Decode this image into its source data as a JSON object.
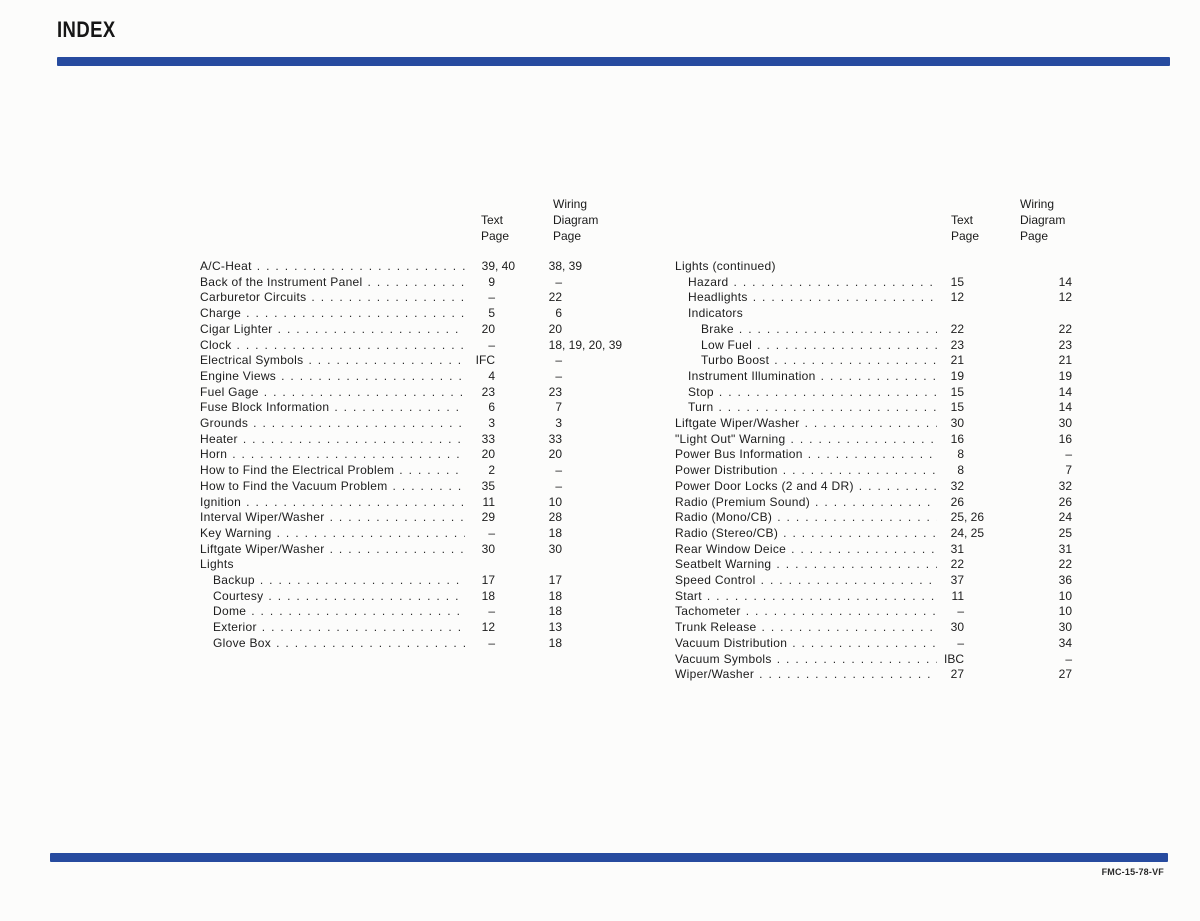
{
  "page": {
    "title": "INDEX",
    "footer_code": "FMC-15-78-VF",
    "accent_color": "#274b9f",
    "background_color": "#fcfcfb",
    "text_color": "#1c1c1c"
  },
  "index": {
    "column_headers": {
      "text": "Text\nPage",
      "wiring": "Wiring\nDiagram\nPage"
    },
    "columns": [
      {
        "entries": [
          {
            "label": "A/C-Heat",
            "indent": 0,
            "text": "39, 40",
            "wiring": "38, 39"
          },
          {
            "label": "Back of the Instrument Panel",
            "indent": 0,
            "text": "9",
            "wiring": "–"
          },
          {
            "label": "Carburetor Circuits",
            "indent": 0,
            "text": "–",
            "wiring": "22"
          },
          {
            "label": "Charge",
            "indent": 0,
            "text": "5",
            "wiring": "6"
          },
          {
            "label": "Cigar Lighter",
            "indent": 0,
            "text": "20",
            "wiring": "20"
          },
          {
            "label": "Clock",
            "indent": 0,
            "text": "–",
            "wiring": "18, 19, 20, 39"
          },
          {
            "label": "Electrical Symbols",
            "indent": 0,
            "text": "IFC",
            "wiring": "–"
          },
          {
            "label": "Engine Views",
            "indent": 0,
            "text": "4",
            "wiring": "–"
          },
          {
            "label": "Fuel Gage",
            "indent": 0,
            "text": "23",
            "wiring": "23"
          },
          {
            "label": "Fuse Block Information",
            "indent": 0,
            "text": "6",
            "wiring": "7"
          },
          {
            "label": "Grounds",
            "indent": 0,
            "text": "3",
            "wiring": "3"
          },
          {
            "label": "Heater",
            "indent": 0,
            "text": "33",
            "wiring": "33"
          },
          {
            "label": "Horn",
            "indent": 0,
            "text": "20",
            "wiring": "20"
          },
          {
            "label": "How to Find the Electrical Problem",
            "indent": 0,
            "text": "2",
            "wiring": "–"
          },
          {
            "label": "How to Find the Vacuum Problem",
            "indent": 0,
            "text": "35",
            "wiring": "–"
          },
          {
            "label": "Ignition",
            "indent": 0,
            "text": "11",
            "wiring": "10"
          },
          {
            "label": "Interval Wiper/Washer",
            "indent": 0,
            "text": "29",
            "wiring": "28"
          },
          {
            "label": "Key Warning",
            "indent": 0,
            "text": "–",
            "wiring": "18"
          },
          {
            "label": "Liftgate Wiper/Washer",
            "indent": 0,
            "text": "30",
            "wiring": "30"
          },
          {
            "label": "Lights",
            "indent": 0,
            "header": true,
            "text": "",
            "wiring": ""
          },
          {
            "label": "Backup",
            "indent": 1,
            "text": "17",
            "wiring": "17"
          },
          {
            "label": "Courtesy",
            "indent": 1,
            "text": "18",
            "wiring": "18"
          },
          {
            "label": "Dome",
            "indent": 1,
            "text": "–",
            "wiring": "18"
          },
          {
            "label": "Exterior",
            "indent": 1,
            "text": "12",
            "wiring": "13"
          },
          {
            "label": "Glove Box",
            "indent": 1,
            "text": "–",
            "wiring": "18"
          }
        ]
      },
      {
        "entries": [
          {
            "label": "Lights (continued)",
            "indent": 0,
            "header": true,
            "text": "",
            "wiring": ""
          },
          {
            "label": "Hazard",
            "indent": 1,
            "text": "15",
            "wiring": "14"
          },
          {
            "label": "Headlights",
            "indent": 1,
            "text": "12",
            "wiring": "12"
          },
          {
            "label": "Indicators",
            "indent": 1,
            "header": true,
            "text": "",
            "wiring": ""
          },
          {
            "label": "Brake",
            "indent": 2,
            "text": "22",
            "wiring": "22"
          },
          {
            "label": "Low Fuel",
            "indent": 2,
            "text": "23",
            "wiring": "23"
          },
          {
            "label": "Turbo Boost",
            "indent": 2,
            "text": "21",
            "wiring": "21"
          },
          {
            "label": "Instrument Illumination",
            "indent": 1,
            "text": "19",
            "wiring": "19"
          },
          {
            "label": "Stop",
            "indent": 1,
            "text": "15",
            "wiring": "14"
          },
          {
            "label": "Turn",
            "indent": 1,
            "text": "15",
            "wiring": "14"
          },
          {
            "label": "Liftgate Wiper/Washer",
            "indent": 0,
            "text": "30",
            "wiring": "30"
          },
          {
            "label": "\"Light Out\" Warning",
            "indent": 0,
            "text": "16",
            "wiring": "16"
          },
          {
            "label": "Power Bus Information",
            "indent": 0,
            "text": "8",
            "wiring": "–"
          },
          {
            "label": "Power Distribution",
            "indent": 0,
            "text": "8",
            "wiring": "7"
          },
          {
            "label": "Power Door Locks (2 and 4 DR)",
            "indent": 0,
            "text": "32",
            "wiring": "32"
          },
          {
            "label": "Radio (Premium Sound)",
            "indent": 0,
            "text": "26",
            "wiring": "26"
          },
          {
            "label": "Radio (Mono/CB)",
            "indent": 0,
            "text": "25, 26",
            "wiring": "24"
          },
          {
            "label": "Radio (Stereo/CB)",
            "indent": 0,
            "text": "24, 25",
            "wiring": "25"
          },
          {
            "label": "Rear Window Deice",
            "indent": 0,
            "text": "31",
            "wiring": "31"
          },
          {
            "label": "Seatbelt Warning",
            "indent": 0,
            "text": "22",
            "wiring": "22"
          },
          {
            "label": "Speed Control",
            "indent": 0,
            "text": "37",
            "wiring": "36"
          },
          {
            "label": "Start",
            "indent": 0,
            "text": "11",
            "wiring": "10"
          },
          {
            "label": "Tachometer",
            "indent": 0,
            "text": "–",
            "wiring": "10"
          },
          {
            "label": "Trunk Release",
            "indent": 0,
            "text": "30",
            "wiring": "30"
          },
          {
            "label": "Vacuum Distribution",
            "indent": 0,
            "text": "–",
            "wiring": "34"
          },
          {
            "label": "Vacuum Symbols",
            "indent": 0,
            "text": "IBC",
            "wiring": "–"
          },
          {
            "label": "Wiper/Washer",
            "indent": 0,
            "text": "27",
            "wiring": "27"
          }
        ]
      }
    ]
  }
}
